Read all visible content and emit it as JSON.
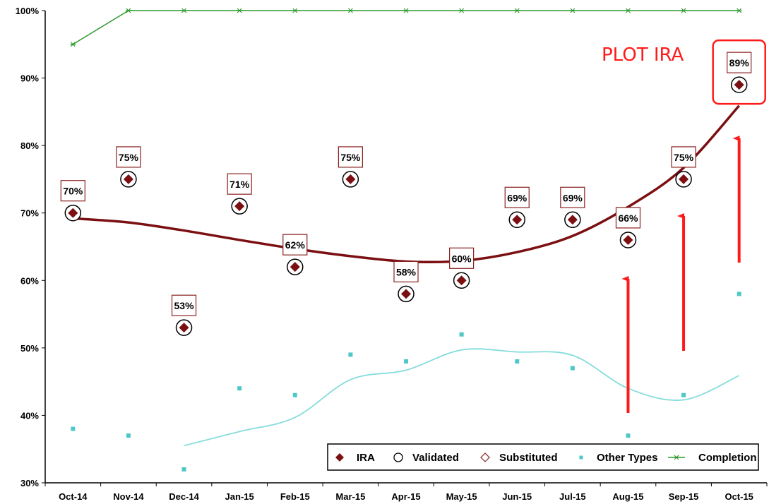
{
  "chart_data": {
    "type": "line",
    "categories": [
      "Oct-14",
      "Nov-14",
      "Dec-14",
      "Jan-15",
      "Feb-15",
      "Mar-15",
      "Apr-15",
      "May-15",
      "Jun-15",
      "Jul-15",
      "Aug-15",
      "Sep-15",
      "Oct-15"
    ],
    "y_tick_labels": [
      "30%",
      "40%",
      "50%",
      "60%",
      "70%",
      "80%",
      "90%",
      "100%"
    ],
    "ylim": [
      30,
      100
    ],
    "grid": false,
    "legend_position": "bottom-right",
    "series": [
      {
        "name": "IRA",
        "type": "scatter",
        "marker": "filled-diamond",
        "color": "#7b0f12",
        "values": [
          70,
          75,
          53,
          71,
          62,
          75,
          58,
          60,
          69,
          69,
          66,
          75,
          89
        ],
        "labels": [
          "70%",
          "75%",
          "53%",
          "71%",
          "62%",
          "75%",
          "58%",
          "60%",
          "69%",
          "69%",
          "66%",
          "75%",
          "89%"
        ],
        "trend": [
          69.2,
          68.6,
          67.4,
          66.0,
          64.7,
          63.6,
          62.8,
          62.9,
          64.2,
          66.6,
          70.9,
          76.7,
          85.9
        ]
      },
      {
        "name": "Validated",
        "type": "scatter",
        "marker": "open-circle",
        "color": "#000000",
        "values": [
          70,
          75,
          53,
          71,
          62,
          75,
          58,
          60,
          69,
          69,
          66,
          75,
          89
        ]
      },
      {
        "name": "Substituted",
        "type": "scatter",
        "marker": "open-diamond",
        "color": "#8b3a3a",
        "values": []
      },
      {
        "name": "Other Types",
        "type": "scatter",
        "marker": "square",
        "color": "#4fc7c7",
        "values": [
          38,
          37,
          32,
          44,
          43,
          49,
          48,
          52,
          48,
          47,
          37,
          43,
          58
        ],
        "trend": [
          null,
          null,
          35.5,
          37.6,
          39.7,
          45.3,
          46.7,
          49.7,
          49.4,
          48.9,
          44.0,
          42.3,
          45.9
        ]
      },
      {
        "name": "Completion",
        "type": "line",
        "marker": "star",
        "color": "#2e9a2e",
        "values": [
          95,
          100,
          100,
          100,
          100,
          100,
          100,
          100,
          100,
          100,
          100,
          100,
          100
        ]
      }
    ],
    "annotations": {
      "text": "PLOT IRA",
      "color": "#ff1a1a",
      "highlight_category": "Oct-15",
      "arrow_categories": [
        "Aug-15",
        "Sep-15",
        "Oct-15"
      ]
    }
  }
}
